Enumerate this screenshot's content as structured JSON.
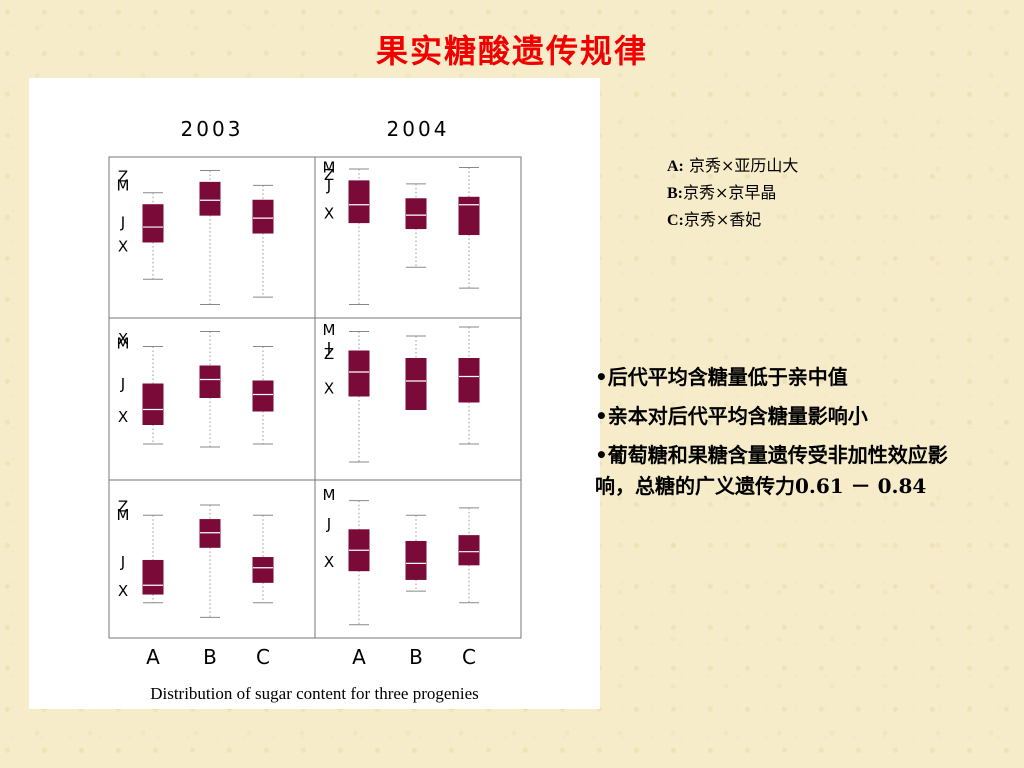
{
  "title": "果实糖酸遗传规律",
  "caption": "Distribution of sugar content for three progenies",
  "legend": [
    {
      "key": "A:",
      "text": "京秀×亚历山大"
    },
    {
      "key": "B:",
      "text": "京秀×京早晶"
    },
    {
      "key": "C:",
      "text": "京秀×香妃"
    }
  ],
  "bullets": [
    "•后代平均含糖量低于亲中值",
    "•亲本对后代平均含糖量影响小",
    "•葡萄糖和果糖含量遗传受非加性效应影响，总糖的广义遗传力0.61 － 0.84"
  ],
  "colors": {
    "box": "#7a0a38",
    "title": "#f20000",
    "background": "#f6ecc9"
  },
  "chart_data": {
    "type": "boxplot",
    "columns": [
      "2003",
      "2004"
    ],
    "categories": [
      "A",
      "B",
      "C"
    ],
    "panels": [
      {
        "row": 0,
        "col": 0,
        "boxes": [
          {
            "category": "A",
            "min": 0.22,
            "q1": 0.47,
            "median": 0.57,
            "q3": 0.72,
            "max": 0.8
          },
          {
            "category": "B",
            "min": 0.05,
            "q1": 0.65,
            "median": 0.75,
            "q3": 0.87,
            "max": 0.95
          },
          {
            "category": "C",
            "min": 0.1,
            "q1": 0.53,
            "median": 0.63,
            "q3": 0.75,
            "max": 0.85
          }
        ],
        "markers": [
          {
            "label": "Z",
            "value": 0.91
          },
          {
            "label": "M",
            "value": 0.85
          },
          {
            "label": "J",
            "value": 0.6
          },
          {
            "label": "X",
            "value": 0.44
          }
        ]
      },
      {
        "row": 0,
        "col": 1,
        "boxes": [
          {
            "category": "A",
            "min": 0.05,
            "q1": 0.6,
            "median": 0.72,
            "q3": 0.88,
            "max": 0.96
          },
          {
            "category": "B",
            "min": 0.3,
            "q1": 0.56,
            "median": 0.65,
            "q3": 0.76,
            "max": 0.86
          },
          {
            "category": "C",
            "min": 0.16,
            "q1": 0.52,
            "median": 0.72,
            "q3": 0.77,
            "max": 0.97
          }
        ],
        "markers": [
          {
            "label": "M",
            "value": 0.97
          },
          {
            "label": "Z",
            "value": 0.92
          },
          {
            "label": "J",
            "value": 0.85
          },
          {
            "label": "X",
            "value": 0.66
          }
        ]
      },
      {
        "row": 1,
        "col": 0,
        "boxes": [
          {
            "category": "A",
            "min": 0.2,
            "q1": 0.33,
            "median": 0.43,
            "q3": 0.6,
            "max": 0.85
          },
          {
            "category": "B",
            "min": 0.18,
            "q1": 0.51,
            "median": 0.63,
            "q3": 0.72,
            "max": 0.95
          },
          {
            "category": "C",
            "min": 0.2,
            "q1": 0.42,
            "median": 0.53,
            "q3": 0.62,
            "max": 0.85
          }
        ],
        "markers": [
          {
            "label": "X",
            "value": 0.9
          },
          {
            "label": "M",
            "value": 0.87
          },
          {
            "label": "J",
            "value": 0.6
          },
          {
            "label": "X",
            "value": 0.38
          }
        ]
      },
      {
        "row": 1,
        "col": 1,
        "boxes": [
          {
            "category": "A",
            "min": 0.08,
            "q1": 0.52,
            "median": 0.68,
            "q3": 0.82,
            "max": 0.95
          },
          {
            "category": "B",
            "min": 0.43,
            "q1": 0.43,
            "median": 0.62,
            "q3": 0.77,
            "max": 0.92
          },
          {
            "category": "C",
            "min": 0.2,
            "q1": 0.48,
            "median": 0.65,
            "q3": 0.77,
            "max": 0.98
          }
        ],
        "markers": [
          {
            "label": "M",
            "value": 0.96
          },
          {
            "label": "J",
            "value": 0.84
          },
          {
            "label": "Z",
            "value": 0.8
          },
          {
            "label": "X",
            "value": 0.57
          }
        ]
      },
      {
        "row": 2,
        "col": 0,
        "boxes": [
          {
            "category": "A",
            "min": 0.2,
            "q1": 0.26,
            "median": 0.32,
            "q3": 0.49,
            "max": 0.8
          },
          {
            "category": "B",
            "min": 0.1,
            "q1": 0.58,
            "median": 0.68,
            "q3": 0.77,
            "max": 0.87
          },
          {
            "category": "C",
            "min": 0.2,
            "q1": 0.34,
            "median": 0.44,
            "q3": 0.51,
            "max": 0.8
          }
        ],
        "markers": [
          {
            "label": "Z",
            "value": 0.86
          },
          {
            "label": "M",
            "value": 0.8
          },
          {
            "label": "J",
            "value": 0.48
          },
          {
            "label": "X",
            "value": 0.28
          }
        ]
      },
      {
        "row": 2,
        "col": 1,
        "boxes": [
          {
            "category": "A",
            "min": 0.05,
            "q1": 0.42,
            "median": 0.56,
            "q3": 0.7,
            "max": 0.9
          },
          {
            "category": "B",
            "min": 0.28,
            "q1": 0.36,
            "median": 0.47,
            "q3": 0.62,
            "max": 0.8
          },
          {
            "category": "C",
            "min": 0.2,
            "q1": 0.46,
            "median": 0.55,
            "q3": 0.66,
            "max": 0.85
          }
        ],
        "markers": [
          {
            "label": "M",
            "value": 0.94
          },
          {
            "label": "J",
            "value": 0.74
          },
          {
            "label": "X",
            "value": 0.48
          }
        ]
      }
    ]
  }
}
